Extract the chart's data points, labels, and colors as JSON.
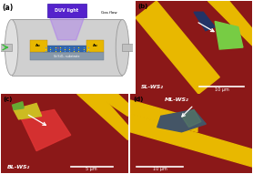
{
  "panels": [
    "a",
    "b",
    "c",
    "d"
  ],
  "panel_labels": [
    "(a)",
    "(b)",
    "(c)",
    "(d)"
  ],
  "bg_color": "#ffffff",
  "mic_bg": "#8B1818",
  "label_b": "SL-WS₂",
  "label_c": "BL-WS₂",
  "label_d": "ML-WS₂",
  "scale_b": "10 μm",
  "scale_c": "5 μm",
  "scale_d": "10 μm",
  "duv_color": "#5522CC",
  "gold_color": "#E8B800",
  "tube_color": "#D0D0D0",
  "gas_green": "#33BB33"
}
